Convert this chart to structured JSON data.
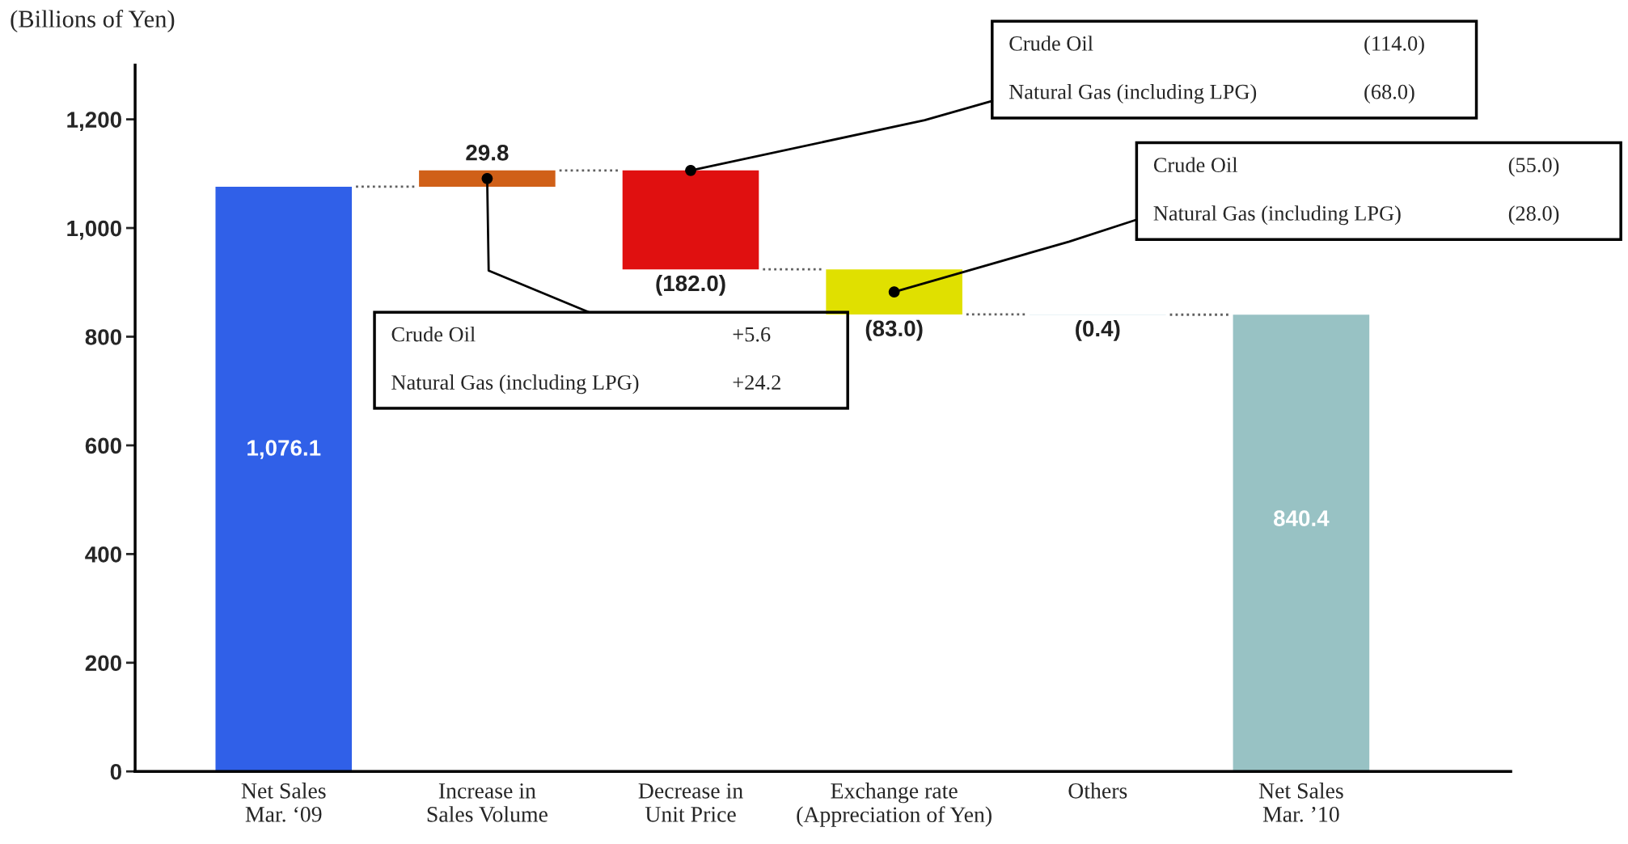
{
  "chart_data": {
    "type": "bar",
    "ylabel": "(Billions of Yen)",
    "categories": [
      "Net Sales\nMar. ‘09",
      "Increase in\nSales Volume",
      "Decrease in\nUnit Price",
      "Exchange rate\n(Appreciation of Yen)",
      "Others",
      "Net Sales\nMar. ’10"
    ],
    "values": [
      1076.1,
      29.8,
      -182.0,
      -83.0,
      -0.4,
      840.4
    ],
    "base": [
      0,
      1076.1,
      1105.9,
      923.9,
      840.9,
      0
    ],
    "colors": [
      "#3060e8",
      "#d06018",
      "#e01010",
      "#e0e000",
      "#a8d0dc",
      "#98c2c4"
    ],
    "value_labels": [
      "1,076.1",
      "29.8",
      "(182.0)",
      "(83.0)",
      "(0.4)",
      "840.4"
    ],
    "ylim": [
      0,
      1300
    ],
    "yticks": [
      0,
      200,
      400,
      600,
      800,
      {
        "value": 1000,
        "label": "1,000"
      },
      {
        "value": 1200,
        "label": "1,200"
      }
    ],
    "grid": false,
    "annotations": [
      "Crude Oil",
      "+5.6",
      "Natural Gas (including LPG)",
      "+24.2",
      "Crude Oil",
      "(114.0)",
      {
        "text": "Natural Gas (including LPG)",
        "x": "Decrease in\nUnit Price",
        "y": 1105.9
      },
      "(68.0)",
      "Crude Oil",
      "(55.0)",
      "Natural Gas (including LPG)",
      "(28.0)"
    ]
  }
}
